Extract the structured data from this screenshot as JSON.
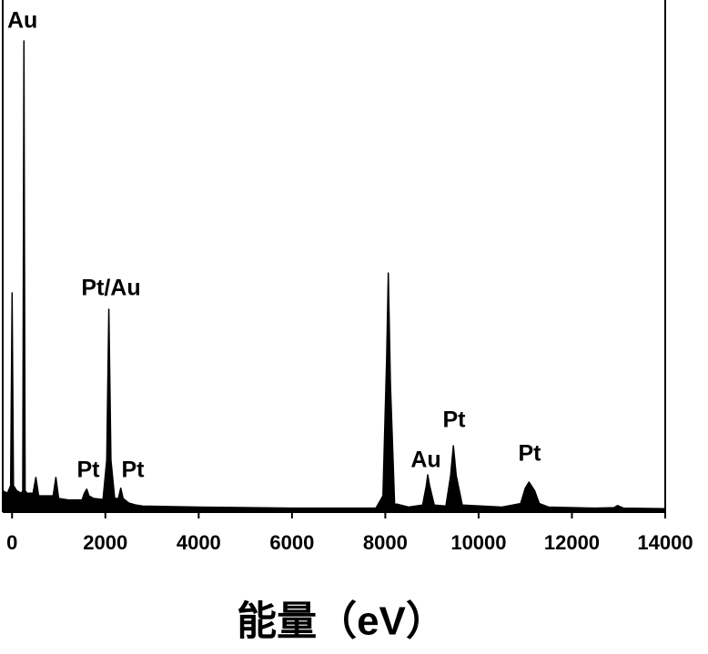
{
  "chart_data": {
    "type": "area",
    "x_label": "能量（eV）",
    "x": [
      -200,
      -100,
      -30,
      0,
      30,
      100,
      200,
      230,
      255,
      280,
      320,
      450,
      510,
      570,
      700,
      880,
      940,
      1000,
      1200,
      1500,
      1550,
      1600,
      1650,
      1750,
      1950,
      2030,
      2075,
      2120,
      2200,
      2280,
      2330,
      2380,
      2500,
      2660,
      2800,
      4000,
      6000,
      7800,
      7950,
      8030,
      8065,
      8110,
      8200,
      8500,
      8800,
      8880,
      8910,
      8950,
      9050,
      9300,
      9400,
      9460,
      9520,
      9650,
      10500,
      10900,
      11000,
      11080,
      11200,
      11300,
      11500,
      12500,
      12900,
      12980,
      13100,
      14000
    ],
    "values": [
      4,
      3.5,
      5,
      42.7,
      5,
      4,
      3.5,
      4,
      92,
      4,
      3.5,
      3.5,
      6.6,
      3,
      3,
      3,
      6.6,
      2.5,
      2.2,
      2.2,
      3.5,
      4.3,
      3,
      2.5,
      2.3,
      10,
      39.5,
      10,
      2.5,
      2.5,
      4.5,
      2.5,
      1.6,
      1.2,
      1,
      0.8,
      0.6,
      0.6,
      3,
      30,
      46.6,
      25,
      1.5,
      0.8,
      1.2,
      5,
      7.1,
      5,
      1.2,
      1,
      7,
      12.8,
      7,
      1.2,
      0.8,
      1.5,
      4.5,
      5.7,
      4,
      1.5,
      0.8,
      0.6,
      0.7,
      1.1,
      0.6,
      0.5
    ],
    "color": "#000000",
    "xlim": [
      -200,
      14000
    ],
    "xticks": [
      0,
      2000,
      4000,
      6000,
      8000,
      10000,
      12000,
      14000
    ],
    "ylim": [
      0,
      100
    ],
    "annotations": [
      "Au",
      "Pt/Au",
      "Pt",
      "Pt",
      "Au",
      "Pt",
      "Pt"
    ]
  }
}
